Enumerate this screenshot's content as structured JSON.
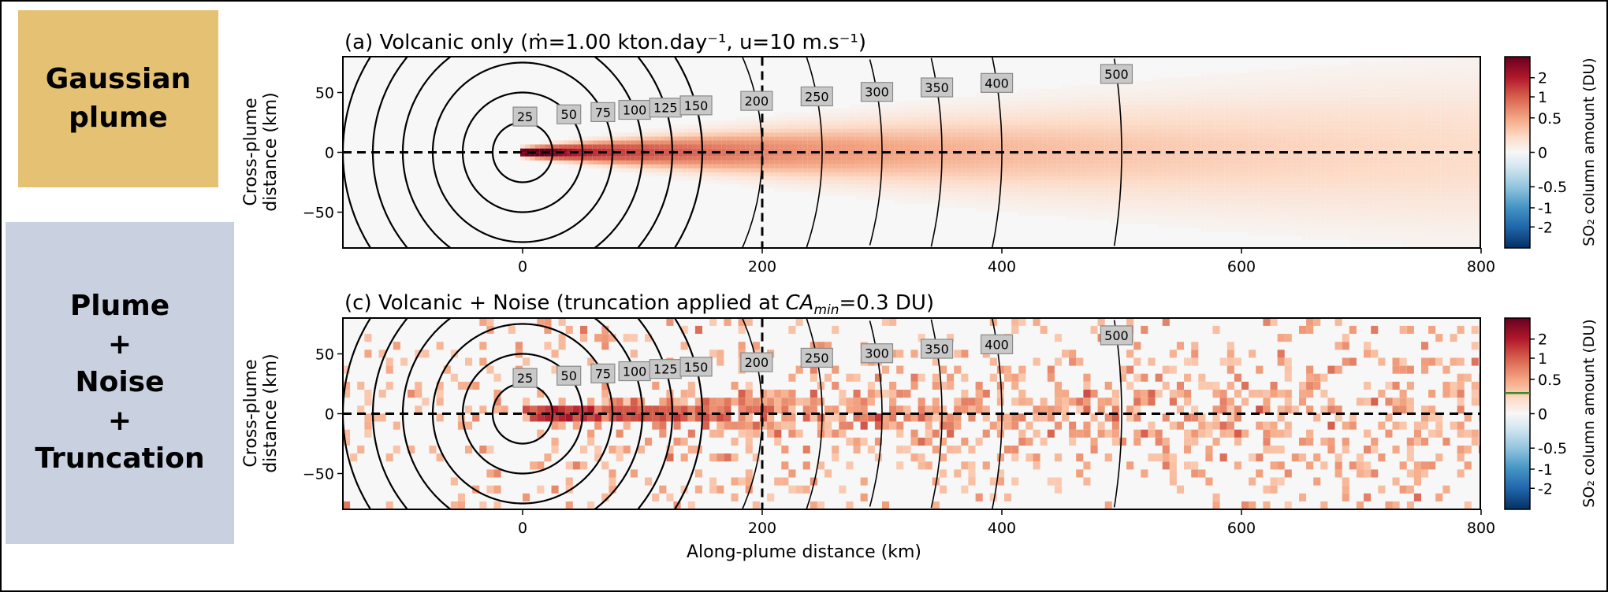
{
  "side_labels": {
    "gaussian": [
      "Gaussian",
      "plume"
    ],
    "noise": [
      "Plume",
      "+",
      "Noise",
      "+",
      "Truncation"
    ]
  },
  "colors": {
    "box_gaussian": "#e5c173",
    "box_noise": "#c9d0df",
    "truncation_line": "#3a8a2a"
  },
  "chart_data": [
    {
      "type": "heatmap",
      "panel": "a",
      "title": "(a) Volcanic only (ṁ=1.00 kton.day⁻¹, u=10 m.s⁻¹)",
      "model": {
        "emission_kton_per_day": 1.0,
        "wind_speed_m_s": 10,
        "noise": false
      },
      "xlabel": "",
      "ylabel": [
        "Cross-plume",
        "distance (km)"
      ],
      "xlim": [
        -150,
        800
      ],
      "ylim": [
        -80,
        80
      ],
      "xticks": [
        "0",
        "200",
        "400",
        "600",
        "800"
      ],
      "yticks": [
        "50",
        "0",
        "-50"
      ],
      "contour_levels": [
        "25",
        "50",
        "75",
        "100",
        "125",
        "150",
        "200",
        "250",
        "300",
        "350",
        "400",
        "500"
      ],
      "dashed_lines": {
        "y": 0,
        "x": 200
      },
      "colorbar": {
        "label": "SO₂ column amount (DU)",
        "ticks": [
          "2",
          "1",
          "0.5",
          "0",
          "-0.5",
          "-1",
          "-2"
        ],
        "range": [
          -2.6,
          2.6
        ]
      }
    },
    {
      "type": "heatmap",
      "panel": "c",
      "title_parts": [
        "(c) Volcanic + Noise (truncation applied at ",
        "CA",
        "min",
        "=0.3 DU)"
      ],
      "model": {
        "emission_kton_per_day": 1.0,
        "wind_speed_m_s": 10,
        "noise": true,
        "truncation_DU": 0.3
      },
      "xlabel": "Along-plume distance (km)",
      "ylabel": [
        "Cross-plume",
        "distance (km)"
      ],
      "xlim": [
        -150,
        800
      ],
      "ylim": [
        -80,
        80
      ],
      "xticks": [
        "0",
        "200",
        "400",
        "600",
        "800"
      ],
      "yticks": [
        "50",
        "0",
        "-50"
      ],
      "contour_levels": [
        "25",
        "50",
        "75",
        "100",
        "125",
        "150",
        "200",
        "250",
        "300",
        "350",
        "400",
        "500"
      ],
      "dashed_lines": {
        "y": 0,
        "x": 200
      },
      "colorbar": {
        "label": "SO₂ column amount (DU)",
        "ticks": [
          "2",
          "1",
          "0.5",
          "0",
          "-0.5",
          "-1",
          "-2"
        ],
        "range": [
          -2.6,
          2.6
        ],
        "marker_value": 0.3
      }
    }
  ]
}
